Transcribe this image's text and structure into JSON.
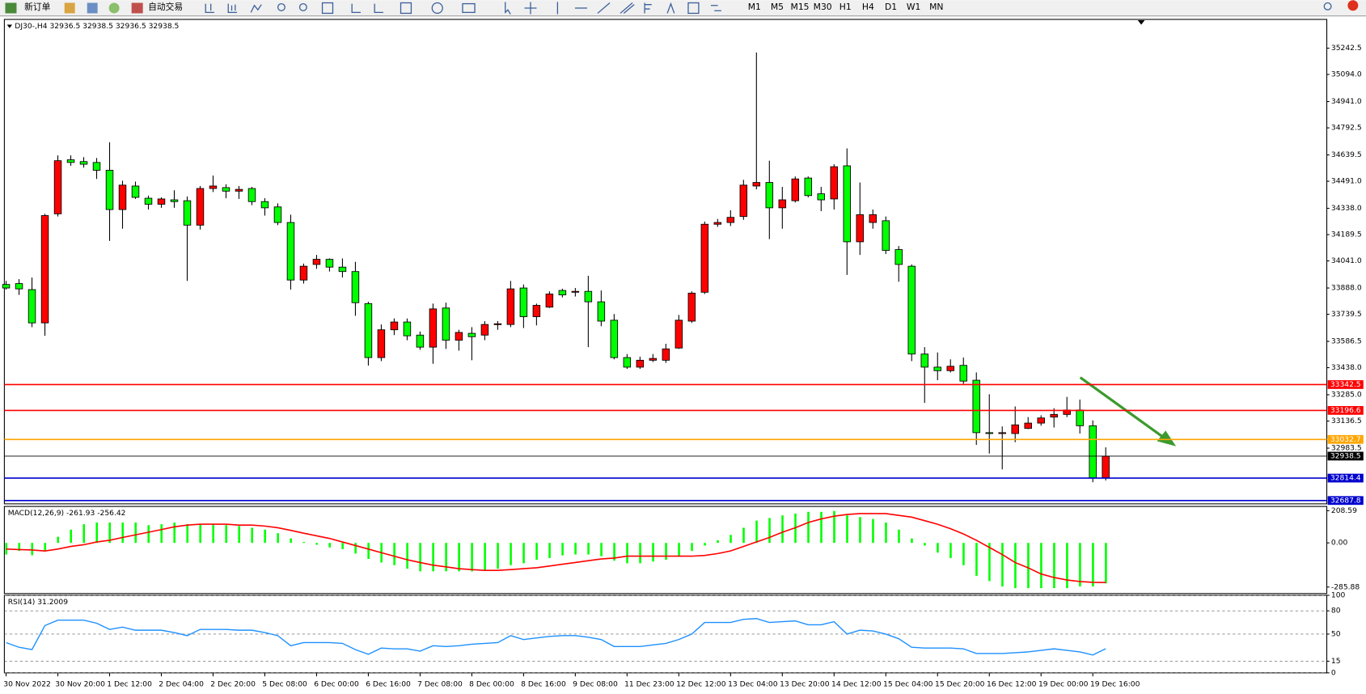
{
  "toolbar": {
    "buttons": [
      "新订单",
      "自动交易"
    ],
    "timeframes": [
      "M1",
      "M5",
      "M15",
      "M30",
      "H1",
      "H4",
      "D1",
      "W1",
      "MN"
    ]
  },
  "chart_data": [
    {
      "type": "candlestick",
      "title": "DJ30-,H4  32936.5 32938.5 32936.5 32938.5",
      "categories": [
        "30 Nov 2022",
        null,
        null,
        null,
        "30 Nov 20:00",
        null,
        null,
        null,
        "1 Dec 12:00",
        null,
        null,
        null,
        "2 Dec 04:00",
        null,
        null,
        null,
        "2 Dec 20:00",
        null,
        null,
        null,
        "5 Dec 08:00",
        null,
        null,
        null,
        "6 Dec 00:00",
        null,
        null,
        null,
        "6 Dec 16:00",
        null,
        null,
        null,
        "7 Dec 08:00",
        null,
        null,
        null,
        "8 Dec 00:00",
        null,
        null,
        null,
        "8 Dec 16:00",
        null,
        null,
        null,
        "9 Dec 08:00",
        null,
        null,
        null,
        "11 Dec 23:00",
        null,
        null,
        null,
        "12 Dec 12:00",
        null,
        null,
        null,
        "13 Dec 04:00",
        null,
        null,
        null,
        "13 Dec 20:00",
        null,
        null,
        null,
        "14 Dec 12:00",
        null,
        null,
        null,
        "15 Dec 04:00",
        null,
        null,
        null,
        "15 Dec 20:00",
        null,
        null,
        null,
        "16 Dec 12:00",
        null,
        null,
        null,
        "19 Dec 00:00",
        null,
        null,
        null,
        "19 Dec 16:00",
        null
      ],
      "open": [
        33908,
        33913,
        33879,
        33691,
        34307,
        34612,
        34602,
        34597,
        34553,
        34331,
        34464,
        34395,
        34361,
        34386,
        34381,
        34243,
        34450,
        34455,
        34435,
        34450,
        34376,
        34346,
        34258,
        33933,
        34021,
        34050,
        34006,
        33981,
        33800,
        33495,
        33652,
        33696,
        33622,
        33554,
        33775,
        33593,
        33632,
        33622,
        33682,
        33682,
        33888,
        33726,
        33780,
        33874,
        33864,
        33869,
        33810,
        33706,
        33495,
        33441,
        33480,
        33480,
        33549,
        33701,
        33864,
        34248,
        34258,
        34292,
        34464,
        34484,
        34341,
        34381,
        34509,
        34420,
        34391,
        34578,
        34149,
        34258,
        34268,
        34105,
        34011,
        33515,
        33441,
        33421,
        33451,
        33367,
        33071,
        33066,
        33066,
        33095,
        33125,
        33159,
        33174,
        33199,
        33110,
        32816
      ],
      "high": [
        33928,
        33938,
        33947,
        34307,
        34637,
        34637,
        34627,
        34622,
        34711,
        34494,
        34489,
        34410,
        34400,
        34440,
        34405,
        34464,
        34523,
        34474,
        34464,
        34459,
        34395,
        34366,
        34302,
        34026,
        34075,
        34055,
        34055,
        34036,
        33810,
        33682,
        33716,
        33716,
        33642,
        33800,
        33805,
        33652,
        33667,
        33701,
        33701,
        33928,
        33908,
        33800,
        33869,
        33884,
        33888,
        33957,
        33874,
        33741,
        33515,
        33500,
        33515,
        33573,
        33736,
        33869,
        34263,
        34278,
        34327,
        34499,
        35218,
        34607,
        34459,
        34518,
        34518,
        34459,
        34587,
        34676,
        34484,
        34331,
        34292,
        34125,
        34021,
        33554,
        33524,
        33485,
        33495,
        33411,
        33288,
        33106,
        33219,
        33159,
        33169,
        33209,
        33273,
        33258,
        33140,
        32988
      ],
      "low": [
        33879,
        33849,
        33667,
        33618,
        34292,
        34578,
        34568,
        34504,
        34154,
        34223,
        34391,
        34331,
        34341,
        34341,
        33928,
        34218,
        34430,
        34395,
        34391,
        34356,
        34297,
        34243,
        33879,
        33913,
        33996,
        33981,
        33947,
        33731,
        33450,
        33475,
        33622,
        33593,
        33539,
        33460,
        33544,
        33534,
        33480,
        33593,
        33652,
        33667,
        33662,
        33677,
        33775,
        33835,
        33840,
        33554,
        33672,
        33485,
        33431,
        33431,
        33470,
        33465,
        33544,
        33691,
        33854,
        34233,
        34238,
        34273,
        34445,
        34164,
        34223,
        34371,
        34400,
        34322,
        34331,
        33962,
        34075,
        34223,
        34080,
        33923,
        33475,
        33239,
        33367,
        33411,
        33347,
        33002,
        32953,
        32864,
        33017,
        33091,
        33110,
        33100,
        33159,
        33066,
        32791,
        32801
      ],
      "close": [
        33888,
        33883,
        33691,
        34297,
        34607,
        34597,
        34587,
        34553,
        34331,
        34469,
        34400,
        34361,
        34391,
        34376,
        34243,
        34450,
        34464,
        34435,
        34445,
        34376,
        34341,
        34258,
        33933,
        34011,
        34050,
        34006,
        33981,
        33805,
        33495,
        33652,
        33696,
        33618,
        33554,
        33770,
        33593,
        33637,
        33613,
        33682,
        33686,
        33883,
        33726,
        33790,
        33854,
        33849,
        33869,
        33810,
        33701,
        33495,
        33441,
        33480,
        33490,
        33544,
        33706,
        33859,
        34248,
        34258,
        34287,
        34469,
        34484,
        34341,
        34386,
        34504,
        34410,
        34386,
        34573,
        34149,
        34302,
        34302,
        34100,
        34021,
        33515,
        33441,
        33421,
        33446,
        33362,
        33071,
        33066,
        33071,
        33115,
        33125,
        33154,
        33174,
        33199,
        33110,
        32816,
        32938.5
      ],
      "up_color": "#ff0000",
      "down_color": "#00ff00",
      "ylim": [
        32669,
        35405
      ],
      "yticks": [
        35242.5,
        {
          "value": 35094,
          "label": "35094.0"
        },
        {
          "value": 34941,
          "label": "34941.0"
        },
        34792.5,
        34639.5,
        {
          "value": 34491,
          "label": "34491.0"
        },
        {
          "value": 34338,
          "label": "34338.0"
        },
        34189.5,
        {
          "value": 34041,
          "label": "34041.0"
        },
        {
          "value": 33888,
          "label": "33888.0"
        },
        33739.5,
        33586.5,
        {
          "value": 33438,
          "label": "33438.0"
        },
        {
          "value": 33285,
          "label": "33285.0"
        },
        33136.5,
        32983.5
      ],
      "grid": false,
      "price_lines": [
        {
          "value": 33342.5,
          "color": "#ff0000"
        },
        {
          "value": 33196.6,
          "color": "#ff0000"
        },
        {
          "value": 33032.7,
          "color": "#ffa500"
        },
        {
          "value": 32938.5,
          "color": "#000000"
        },
        {
          "value": 32814.4,
          "color": "#0000cd"
        },
        {
          "value": 32687.8,
          "color": "#0000cd"
        }
      ]
    },
    {
      "type": "macd",
      "title": "MACD(12,26,9) -261.93 -256.42",
      "histogram": {
        "color": "#00ff00",
        "values": [
          -75,
          -52,
          -80,
          -52,
          40,
          86,
          121,
          132,
          132,
          132,
          132,
          115,
          121,
          132,
          121,
          121,
          121,
          115,
          109,
          98,
          86,
          63,
          29,
          6,
          -12,
          -29,
          -40,
          -69,
          -104,
          -127,
          -144,
          -167,
          -184,
          -184,
          -184,
          -184,
          -184,
          -178,
          -167,
          -144,
          -132,
          -109,
          -98,
          -81,
          -75,
          -75,
          -86,
          -115,
          -132,
          -132,
          -121,
          -109,
          -86,
          -52,
          -17,
          17,
          52,
          98,
          144,
          161,
          178,
          190,
          201,
          201,
          207,
          178,
          167,
          155,
          132,
          86,
          29,
          -17,
          -63,
          -98,
          -144,
          -213,
          -247,
          -282,
          -293,
          -293,
          -293,
          -293,
          -293,
          -282,
          -282,
          -261.93
        ]
      },
      "signal": {
        "color": "#ff0000",
        "values": [
          -40,
          -43,
          -46,
          -52,
          -40,
          -23,
          -12,
          6,
          17,
          35,
          52,
          69,
          86,
          104,
          115,
          121,
          121,
          121,
          115,
          115,
          109,
          98,
          81,
          63,
          46,
          29,
          6,
          -17,
          -40,
          -63,
          -86,
          -109,
          -127,
          -144,
          -155,
          -167,
          -173,
          -178,
          -178,
          -173,
          -167,
          -161,
          -150,
          -138,
          -127,
          -115,
          -104,
          -98,
          -86,
          -86,
          -86,
          -86,
          -86,
          -86,
          -81,
          -69,
          -52,
          -23,
          6,
          35,
          69,
          98,
          132,
          155,
          173,
          184,
          190,
          190,
          190,
          178,
          167,
          144,
          121,
          92,
          58,
          17,
          -29,
          -75,
          -127,
          -161,
          -201,
          -224,
          -240,
          -250,
          -255,
          -256.42
        ]
      },
      "ylim": [
        -328,
        236
      ],
      "yticks": [
        208.59,
        {
          "value": 0,
          "label": "0.00"
        },
        -285.88
      ],
      "grid": false
    },
    {
      "type": "line",
      "title": "RSI(14) 31.2009",
      "color": "#1e90ff",
      "values": [
        39,
        33,
        30,
        61,
        68,
        68,
        68,
        64,
        56,
        59,
        55,
        55,
        55,
        52,
        48,
        56,
        56,
        56,
        55,
        55,
        52,
        48,
        35,
        39,
        39,
        39,
        38,
        30,
        24,
        32,
        31,
        31,
        28,
        35,
        34,
        35,
        37,
        38,
        39,
        48,
        43,
        45,
        47,
        48,
        48,
        46,
        43,
        34,
        34,
        34,
        36,
        38,
        43,
        50,
        65,
        65,
        65,
        69,
        70,
        65,
        66,
        67,
        62,
        62,
        66,
        50,
        55,
        54,
        50,
        44,
        33,
        32,
        32,
        32,
        31,
        25,
        25,
        25,
        26,
        27,
        29,
        31,
        29,
        27,
        23,
        31.2009
      ],
      "ylim": [
        0,
        100
      ],
      "yticks": [
        100,
        80,
        50,
        15,
        0
      ],
      "grid": true
    }
  ]
}
